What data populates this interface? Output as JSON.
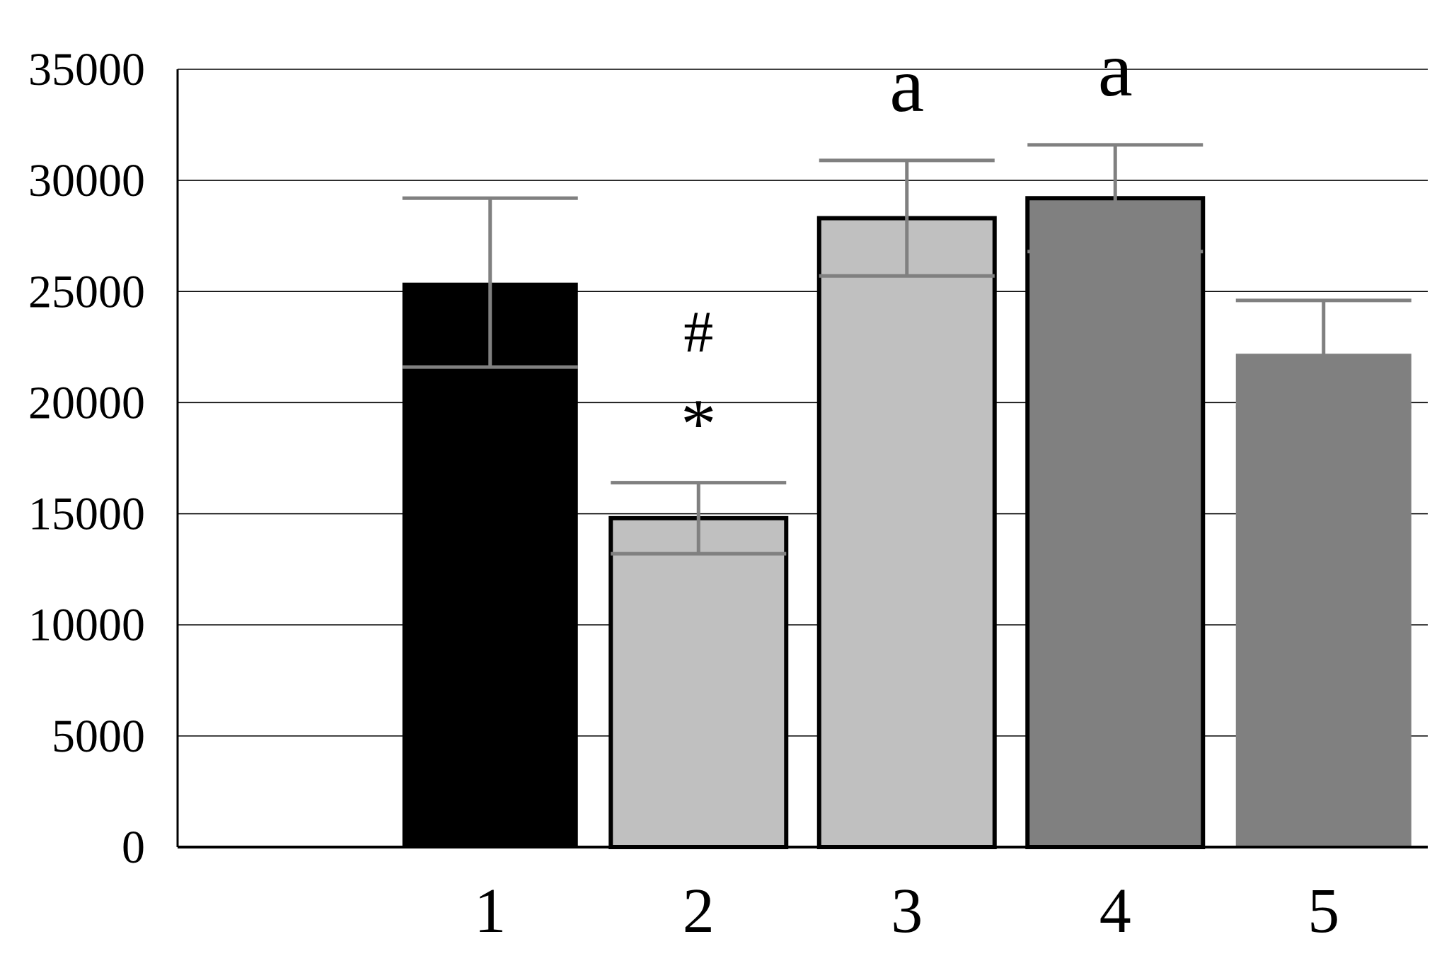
{
  "chart_data": {
    "type": "bar",
    "categories": [
      "1",
      "2",
      "3",
      "4",
      "5"
    ],
    "values": [
      25400,
      14800,
      28300,
      29200,
      22200
    ],
    "errors": [
      3800,
      1600,
      2600,
      2400,
      2400
    ],
    "annotations": [
      {
        "category": "1",
        "labels": []
      },
      {
        "category": "2",
        "labels": [
          "#",
          "*"
        ]
      },
      {
        "category": "3",
        "labels": [
          "a"
        ]
      },
      {
        "category": "4",
        "labels": [
          "a"
        ]
      },
      {
        "category": "5",
        "labels": []
      }
    ],
    "colors": [
      "#000000",
      "#c0c0c0",
      "#c0c0c0",
      "#808080",
      "#808080"
    ],
    "outlined": [
      false,
      true,
      true,
      true,
      false
    ],
    "error_bar_color": "#808080",
    "ylim": [
      0,
      35000
    ],
    "yticks": [
      "0",
      "5000",
      "10000",
      "15000",
      "20000",
      "25000",
      "30000",
      "35000"
    ],
    "grid": true,
    "title": "",
    "xlabel": "",
    "ylabel": ""
  }
}
